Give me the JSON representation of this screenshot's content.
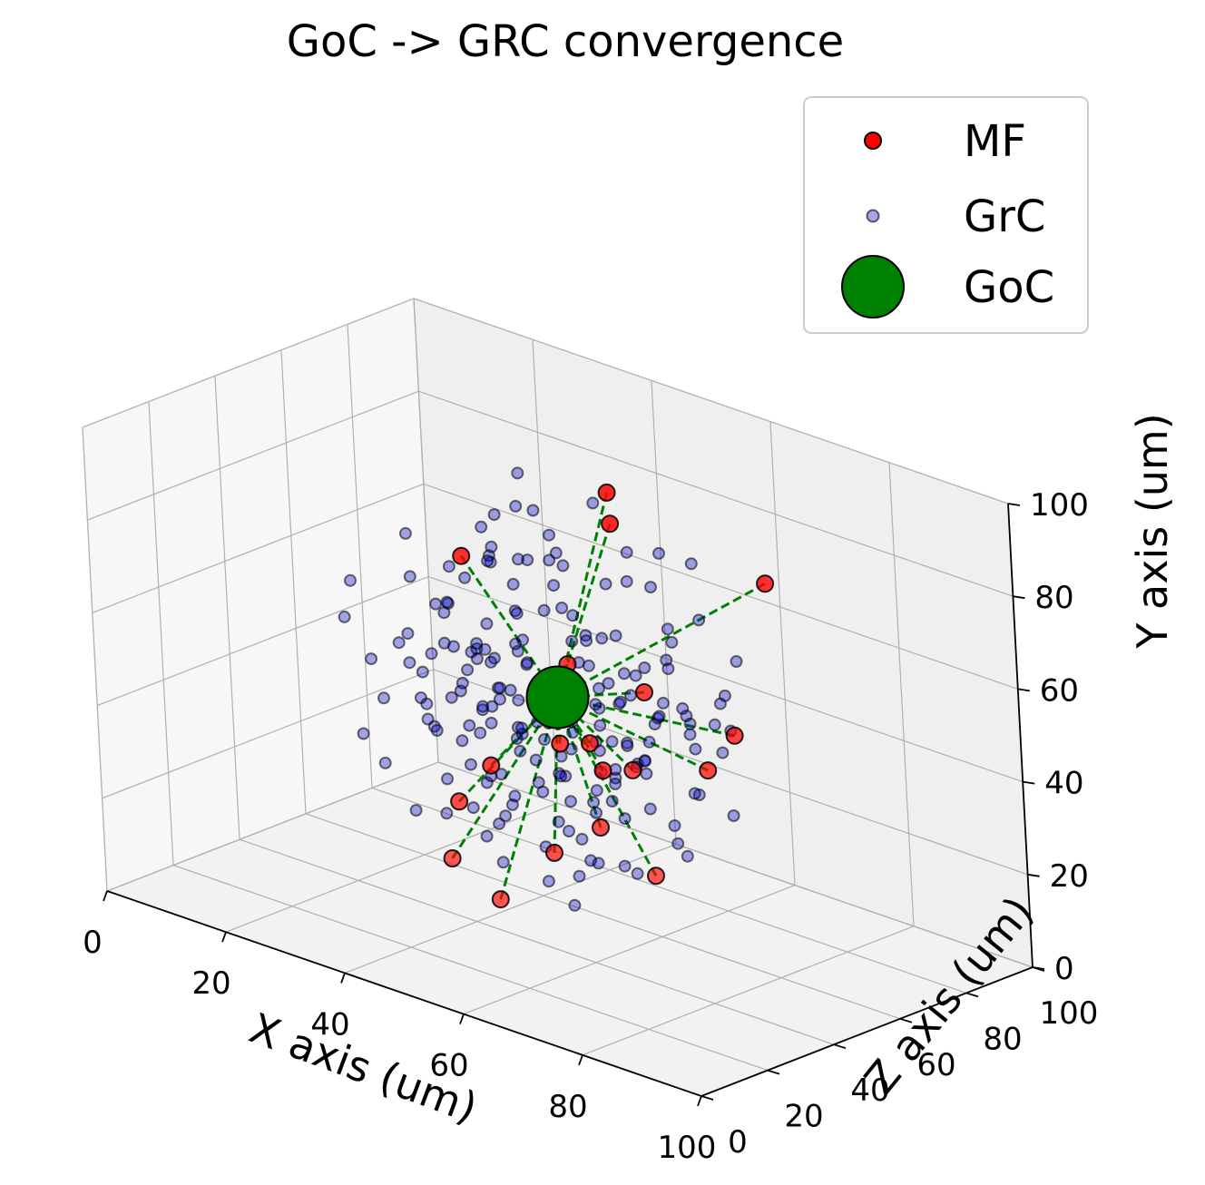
{
  "chart_data": {
    "type": "scatter",
    "title": "GoC -> GRC convergence",
    "xlabel": "X axis (um)",
    "ylabel": "Y axis (um)",
    "zlabel": "Z axis (um)",
    "xlim": [
      0,
      100
    ],
    "ylim": [
      0,
      100
    ],
    "zlim": [
      0,
      100
    ],
    "xticks": [
      "0",
      "20",
      "40",
      "60",
      "80",
      "100"
    ],
    "yticks": [
      "0",
      "20",
      "40",
      "60",
      "80",
      "100"
    ],
    "zticks": [
      "0",
      "20",
      "40",
      "60",
      "80",
      "100"
    ],
    "grid": true,
    "legend": {
      "placement": "top-right",
      "entries": [
        "MF",
        "GrC",
        "GoC"
      ]
    },
    "colors": {
      "MF": "#ff0000",
      "GrC": "#0000cc",
      "GoC": "#008000",
      "connection": "#008000"
    },
    "series": [
      {
        "name": "GoC",
        "points": [
          [
            50,
            50,
            50
          ]
        ]
      },
      {
        "name": "MF",
        "points": [
          [
            40,
            80,
            85
          ],
          [
            42,
            75,
            82
          ],
          [
            22,
            62,
            72
          ],
          [
            75,
            80,
            70
          ],
          [
            80,
            55,
            50
          ],
          [
            78,
            48,
            45
          ],
          [
            62,
            55,
            55
          ],
          [
            52,
            58,
            50
          ],
          [
            45,
            45,
            55
          ],
          [
            50,
            40,
            50
          ],
          [
            58,
            45,
            45
          ],
          [
            68,
            45,
            40
          ],
          [
            60,
            40,
            45
          ],
          [
            62,
            30,
            40
          ],
          [
            78,
            30,
            28
          ],
          [
            38,
            30,
            50
          ],
          [
            38,
            25,
            40
          ],
          [
            45,
            20,
            25
          ],
          [
            55,
            22,
            38
          ],
          [
            50,
            12,
            30
          ]
        ]
      },
      {
        "name": "GrC",
        "points": [
          [
            8,
            53,
            63
          ],
          [
            20,
            39,
            77
          ],
          [
            33,
            64,
            79
          ],
          [
            37,
            62,
            73
          ],
          [
            55,
            34,
            64
          ],
          [
            79,
            58,
            46
          ],
          [
            33,
            85,
            71
          ],
          [
            33,
            43,
            48
          ],
          [
            66,
            82,
            64
          ],
          [
            30,
            64,
            75
          ],
          [
            67,
            53,
            50
          ],
          [
            54,
            49,
            40
          ],
          [
            40,
            68,
            35
          ],
          [
            36,
            54,
            51
          ],
          [
            72,
            26,
            48
          ],
          [
            73,
            40,
            36
          ],
          [
            26,
            39,
            51
          ],
          [
            32,
            70,
            51
          ],
          [
            64,
            85,
            58
          ],
          [
            34,
            56,
            45
          ],
          [
            31,
            67,
            21
          ],
          [
            28,
            49,
            58
          ],
          [
            32,
            69,
            63
          ],
          [
            51,
            29,
            29
          ],
          [
            57,
            40,
            31
          ],
          [
            45,
            19,
            57
          ],
          [
            47,
            35,
            33
          ],
          [
            48,
            47,
            30
          ],
          [
            43,
            57,
            44
          ],
          [
            36,
            34,
            62
          ],
          [
            45,
            29,
            32
          ],
          [
            57,
            50,
            56
          ],
          [
            46,
            38,
            45
          ],
          [
            31,
            64,
            76
          ],
          [
            23,
            58,
            71
          ],
          [
            58,
            38,
            48
          ],
          [
            26,
            75,
            49
          ],
          [
            60,
            22,
            40
          ],
          [
            44,
            48,
            38
          ],
          [
            51,
            67,
            54
          ],
          [
            45,
            50,
            54
          ],
          [
            45,
            30,
            24
          ],
          [
            47,
            62,
            32
          ],
          [
            60,
            43,
            32
          ],
          [
            79,
            62,
            48
          ],
          [
            71,
            85,
            43
          ],
          [
            45,
            40,
            46
          ],
          [
            69,
            53,
            55
          ],
          [
            70,
            42,
            30
          ],
          [
            65,
            42,
            40
          ],
          [
            55,
            27,
            51
          ],
          [
            61,
            29,
            49
          ],
          [
            28,
            30,
            36
          ],
          [
            45,
            65,
            22
          ],
          [
            42,
            31,
            46
          ],
          [
            35,
            65,
            45
          ],
          [
            69,
            47,
            42
          ],
          [
            41,
            43,
            39
          ],
          [
            62,
            38,
            45
          ],
          [
            34,
            23,
            34
          ],
          [
            37,
            53,
            63
          ],
          [
            66,
            67,
            57
          ],
          [
            38,
            73,
            53
          ],
          [
            56,
            75,
            37
          ],
          [
            60,
            38,
            55
          ],
          [
            49,
            42,
            25
          ],
          [
            46,
            29,
            58
          ],
          [
            61,
            60,
            24
          ],
          [
            55,
            51,
            35
          ],
          [
            43,
            20,
            39
          ],
          [
            34,
            65,
            43
          ],
          [
            72,
            48,
            52
          ],
          [
            58,
            63,
            43
          ],
          [
            50,
            31,
            35
          ],
          [
            54,
            33,
            68
          ],
          [
            53,
            47,
            57
          ],
          [
            41,
            51,
            37
          ],
          [
            44,
            63,
            63
          ],
          [
            69,
            51,
            56
          ],
          [
            61,
            69,
            45
          ],
          [
            58,
            51,
            40
          ],
          [
            47,
            43,
            58
          ],
          [
            48,
            55,
            36
          ],
          [
            41,
            46,
            62
          ],
          [
            67,
            52,
            49
          ],
          [
            54,
            45,
            47
          ],
          [
            48,
            47,
            54
          ],
          [
            42,
            64,
            44
          ],
          [
            57,
            56,
            58
          ],
          [
            51,
            34,
            48
          ],
          [
            53,
            34,
            39
          ],
          [
            40,
            54,
            41
          ],
          [
            49,
            26,
            54
          ],
          [
            55,
            49,
            63
          ],
          [
            40,
            40,
            62
          ],
          [
            64,
            53,
            57
          ],
          [
            56,
            65,
            31
          ],
          [
            35,
            47,
            48
          ],
          [
            50,
            52,
            47
          ],
          [
            63,
            45,
            54
          ],
          [
            45,
            48,
            47
          ],
          [
            53,
            61,
            63
          ],
          [
            60,
            70,
            42
          ],
          [
            44,
            72,
            49
          ],
          [
            57,
            33,
            63
          ],
          [
            52,
            44,
            42
          ],
          [
            46,
            57,
            62
          ],
          [
            36,
            50,
            55
          ],
          [
            66,
            46,
            61
          ],
          [
            58,
            42,
            56
          ],
          [
            39,
            35,
            58
          ],
          [
            47,
            69,
            44
          ],
          [
            52,
            38,
            62
          ],
          [
            61,
            35,
            40
          ],
          [
            43,
            40,
            51
          ],
          [
            56,
            54,
            52
          ],
          [
            49,
            37,
            55
          ],
          [
            38,
            55,
            50
          ],
          [
            64,
            62,
            52
          ],
          [
            50,
            63,
            39
          ],
          [
            44,
            33,
            53
          ],
          [
            55,
            42,
            52
          ],
          [
            48,
            58,
            45
          ],
          [
            42,
            48,
            50
          ],
          [
            60,
            58,
            48
          ],
          [
            53,
            40,
            45
          ],
          [
            46,
            53,
            40
          ],
          [
            57,
            47,
            50
          ],
          [
            51,
            55,
            58
          ],
          [
            40,
            45,
            45
          ],
          [
            20,
            60,
            60
          ],
          [
            25,
            45,
            70
          ],
          [
            30,
            35,
            65
          ],
          [
            22,
            50,
            55
          ],
          [
            28,
            72,
            68
          ],
          [
            18,
            40,
            62
          ],
          [
            24,
            30,
            58
          ],
          [
            35,
            80,
            60
          ],
          [
            30,
            55,
            30
          ],
          [
            26,
            42,
            40
          ],
          [
            75,
            70,
            40
          ],
          [
            80,
            65,
            35
          ],
          [
            85,
            50,
            30
          ],
          [
            82,
            40,
            45
          ],
          [
            78,
            35,
            35
          ],
          [
            70,
            30,
            25
          ],
          [
            76,
            58,
            25
          ],
          [
            84,
            60,
            42
          ],
          [
            72,
            75,
            55
          ],
          [
            68,
            62,
            30
          ],
          [
            55,
            15,
            45
          ],
          [
            50,
            18,
            55
          ],
          [
            60,
            18,
            50
          ],
          [
            45,
            15,
            40
          ],
          [
            40,
            20,
            50
          ],
          [
            65,
            20,
            45
          ],
          [
            35,
            25,
            55
          ],
          [
            58,
            12,
            38
          ],
          [
            48,
            10,
            48
          ],
          [
            42,
            12,
            58
          ],
          [
            50,
            85,
            50
          ],
          [
            45,
            80,
            40
          ],
          [
            55,
            82,
            45
          ],
          [
            60,
            78,
            55
          ],
          [
            40,
            78,
            50
          ],
          [
            52,
            90,
            60
          ],
          [
            58,
            88,
            38
          ],
          [
            48,
            92,
            44
          ],
          [
            62,
            86,
            52
          ],
          [
            44,
            86,
            56
          ],
          [
            30,
            48,
            45
          ],
          [
            32,
            58,
            35
          ],
          [
            28,
            38,
            30
          ],
          [
            35,
            28,
            42
          ],
          [
            38,
            45,
            32
          ],
          [
            70,
            55,
            65
          ],
          [
            72,
            45,
            60
          ],
          [
            68,
            35,
            58
          ],
          [
            74,
            65,
            62
          ],
          [
            66,
            28,
            55
          ],
          [
            52,
            50,
            70
          ],
          [
            48,
            42,
            72
          ],
          [
            55,
            60,
            75
          ],
          [
            45,
            55,
            68
          ],
          [
            58,
            45,
            66
          ],
          [
            50,
            50,
            30
          ],
          [
            46,
            45,
            28
          ],
          [
            54,
            58,
            26
          ],
          [
            42,
            52,
            25
          ],
          [
            58,
            40,
            22
          ],
          [
            38,
            60,
            60
          ],
          [
            62,
            60,
            62
          ],
          [
            36,
            40,
            38
          ],
          [
            64,
            40,
            36
          ],
          [
            50,
            70,
            66
          ],
          [
            50,
            30,
            66
          ],
          [
            40,
            70,
            36
          ],
          [
            60,
            30,
            34
          ],
          [
            34,
            50,
            66
          ],
          [
            66,
            50,
            34
          ]
        ]
      }
    ]
  }
}
